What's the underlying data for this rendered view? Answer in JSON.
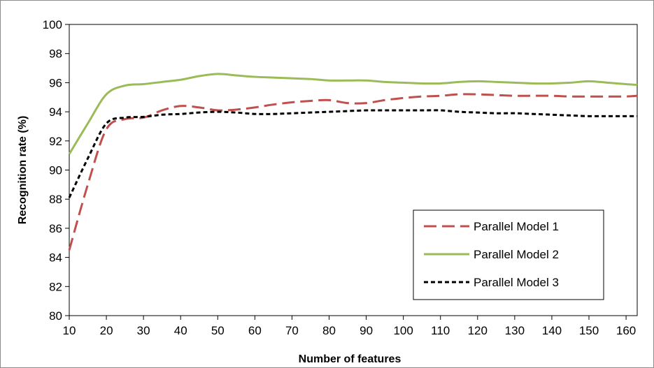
{
  "chart_data": {
    "type": "line",
    "title": "",
    "xlabel": "Number of features",
    "ylabel": "Recognition rate (%)",
    "xlim": [
      10,
      163
    ],
    "ylim": [
      80,
      100
    ],
    "x_ticks": [
      10,
      20,
      30,
      40,
      50,
      60,
      70,
      80,
      90,
      100,
      110,
      120,
      130,
      140,
      150,
      160
    ],
    "y_ticks": [
      80,
      82,
      84,
      86,
      88,
      90,
      92,
      94,
      96,
      98,
      100
    ],
    "grid": false,
    "legend_position": "lower-right",
    "series": [
      {
        "name": "Parallel Model 1",
        "color": "#c0504d",
        "dash": "dashed",
        "x": [
          10,
          15,
          20,
          25,
          30,
          35,
          40,
          45,
          50,
          55,
          60,
          65,
          70,
          75,
          80,
          85,
          90,
          95,
          100,
          105,
          110,
          115,
          120,
          125,
          130,
          135,
          140,
          145,
          150,
          155,
          160,
          163
        ],
        "y": [
          84.5,
          89.0,
          92.8,
          93.5,
          93.6,
          94.1,
          94.4,
          94.3,
          94.1,
          94.15,
          94.3,
          94.5,
          94.65,
          94.75,
          94.8,
          94.6,
          94.6,
          94.8,
          94.95,
          95.05,
          95.1,
          95.2,
          95.2,
          95.15,
          95.1,
          95.1,
          95.1,
          95.05,
          95.05,
          95.05,
          95.05,
          95.1
        ]
      },
      {
        "name": "Parallel Model 2",
        "color": "#9bbb59",
        "dash": "solid",
        "x": [
          10,
          15,
          20,
          25,
          30,
          35,
          40,
          45,
          50,
          55,
          60,
          65,
          70,
          75,
          80,
          85,
          90,
          95,
          100,
          105,
          110,
          115,
          120,
          125,
          130,
          135,
          140,
          145,
          150,
          155,
          160,
          163
        ],
        "y": [
          91.1,
          93.2,
          95.2,
          95.8,
          95.9,
          96.05,
          96.2,
          96.45,
          96.6,
          96.5,
          96.4,
          96.35,
          96.3,
          96.25,
          96.15,
          96.15,
          96.15,
          96.05,
          96.0,
          95.95,
          95.95,
          96.05,
          96.1,
          96.05,
          96.0,
          95.95,
          95.95,
          96.0,
          96.1,
          96.0,
          95.9,
          95.85
        ]
      },
      {
        "name": "Parallel Model 3",
        "color": "#000000",
        "dash": "dotted",
        "x": [
          10,
          15,
          20,
          25,
          30,
          35,
          40,
          45,
          50,
          55,
          60,
          65,
          70,
          75,
          80,
          85,
          90,
          95,
          100,
          105,
          110,
          115,
          120,
          125,
          130,
          135,
          140,
          145,
          150,
          155,
          160,
          163
        ],
        "y": [
          88.1,
          90.8,
          93.2,
          93.6,
          93.65,
          93.8,
          93.85,
          93.95,
          94.0,
          93.95,
          93.85,
          93.85,
          93.9,
          93.95,
          94.0,
          94.05,
          94.1,
          94.1,
          94.1,
          94.1,
          94.1,
          94.0,
          93.95,
          93.9,
          93.9,
          93.85,
          93.8,
          93.75,
          93.7,
          93.7,
          93.7,
          93.7
        ]
      }
    ]
  }
}
